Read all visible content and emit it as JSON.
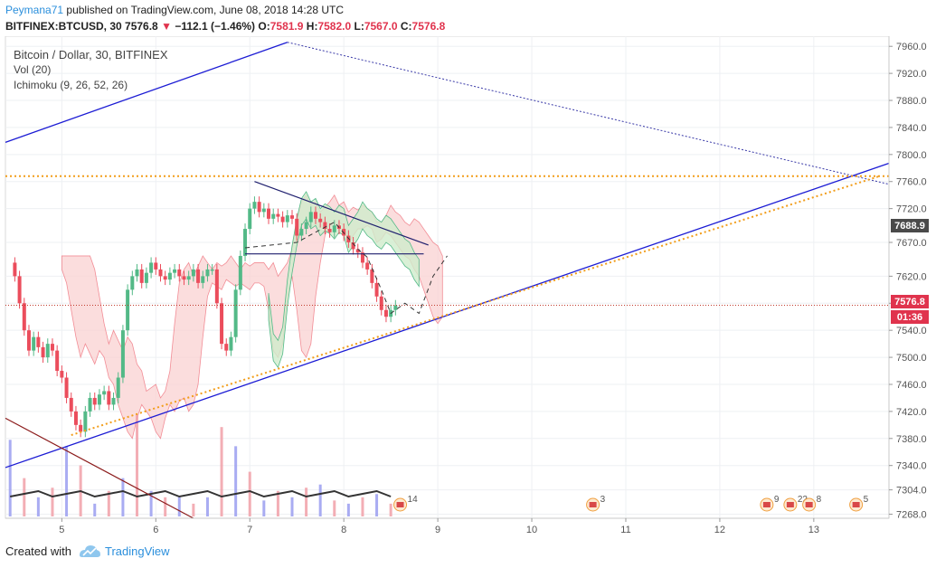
{
  "header": {
    "author": "Peymana71",
    "published_text": "published on TradingView.com, June 08, 2018 14:28 UTC",
    "symbol": "BITFINEX:BTCUSD, 30",
    "last": "7576.8",
    "down_arrow": "▼",
    "change": "−112.1 (−1.46%)",
    "o_label": "O:",
    "o_value": "7581.9",
    "h_label": "H:",
    "h_value": "7582.0",
    "l_label": "L:",
    "l_value": "7567.0",
    "c_label": "C:",
    "c_value": "7576.8"
  },
  "legend": {
    "main": "Bitcoin / Dollar, 30, BITFINEX",
    "vol": "Vol (20)",
    "ichimoku": "Ichimoku (9, 26, 52, 26)"
  },
  "price_tags": {
    "upper": "7688.9",
    "last": "7576.8",
    "countdown": "01:36"
  },
  "footer": {
    "created_with": "Created with",
    "brand": "TradingView"
  },
  "colors": {
    "bull": "#53b987",
    "bear": "#eb4d5c",
    "trend_blue": "#1c1cd4",
    "level_orange": "#f29d1a",
    "cloud_green": "#cfeccc",
    "cloud_red": "#f9d2d2",
    "tag_grey": "#4a4a4a",
    "tag_red": "#e0334d",
    "brown_line": "#8b1a1a"
  },
  "events": [
    "14",
    "3",
    "9",
    "22",
    "8",
    "5"
  ],
  "chart_data": {
    "type": "candlestick",
    "title": "Bitcoin / Dollar, 30, BITFINEX",
    "ylim": [
      7262,
      7975
    ],
    "y_ticks": [
      7960,
      7920,
      7880,
      7840,
      7800,
      7760,
      7720,
      7670,
      7620,
      7580,
      7540,
      7500,
      7460,
      7420,
      7380,
      7340,
      7304,
      7268
    ],
    "x_ticks": [
      "5",
      "6",
      "7",
      "8",
      "9",
      "10",
      "11",
      "12",
      "13"
    ],
    "x_tick_days": [
      5,
      6,
      7,
      8,
      9,
      10,
      11,
      12,
      13
    ],
    "xlim_days": [
      4.4,
      13.8
    ],
    "close_path": [
      [
        4.45,
        7640
      ],
      [
        4.5,
        7620
      ],
      [
        4.55,
        7580
      ],
      [
        4.6,
        7540
      ],
      [
        4.65,
        7510
      ],
      [
        4.7,
        7530
      ],
      [
        4.75,
        7515
      ],
      [
        4.8,
        7500
      ],
      [
        4.85,
        7520
      ],
      [
        4.9,
        7510
      ],
      [
        4.95,
        7480
      ],
      [
        5.0,
        7470
      ],
      [
        5.05,
        7440
      ],
      [
        5.1,
        7420
      ],
      [
        5.15,
        7400
      ],
      [
        5.2,
        7390
      ],
      [
        5.25,
        7420
      ],
      [
        5.3,
        7440
      ],
      [
        5.35,
        7430
      ],
      [
        5.4,
        7445
      ],
      [
        5.45,
        7450
      ],
      [
        5.5,
        7430
      ],
      [
        5.55,
        7440
      ],
      [
        5.6,
        7470
      ],
      [
        5.65,
        7540
      ],
      [
        5.7,
        7600
      ],
      [
        5.75,
        7620
      ],
      [
        5.8,
        7630
      ],
      [
        5.85,
        7610
      ],
      [
        5.9,
        7625
      ],
      [
        5.95,
        7640
      ],
      [
        6.0,
        7630
      ],
      [
        6.05,
        7620
      ],
      [
        6.1,
        7615
      ],
      [
        6.15,
        7625
      ],
      [
        6.2,
        7630
      ],
      [
        6.25,
        7620
      ],
      [
        6.3,
        7615
      ],
      [
        6.35,
        7620
      ],
      [
        6.4,
        7630
      ],
      [
        6.45,
        7610
      ],
      [
        6.5,
        7620
      ],
      [
        6.55,
        7630
      ],
      [
        6.6,
        7630
      ],
      [
        6.65,
        7580
      ],
      [
        6.7,
        7520
      ],
      [
        6.75,
        7510
      ],
      [
        6.8,
        7530
      ],
      [
        6.85,
        7600
      ],
      [
        6.9,
        7650
      ],
      [
        6.95,
        7690
      ],
      [
        7.0,
        7720
      ],
      [
        7.05,
        7730
      ],
      [
        7.1,
        7715
      ],
      [
        7.15,
        7720
      ],
      [
        7.2,
        7705
      ],
      [
        7.25,
        7712
      ],
      [
        7.3,
        7708
      ],
      [
        7.35,
        7700
      ],
      [
        7.4,
        7710
      ],
      [
        7.45,
        7705
      ],
      [
        7.5,
        7680
      ],
      [
        7.55,
        7690
      ],
      [
        7.6,
        7700
      ],
      [
        7.65,
        7715
      ],
      [
        7.7,
        7705
      ],
      [
        7.75,
        7700
      ],
      [
        7.8,
        7690
      ],
      [
        7.85,
        7685
      ],
      [
        7.9,
        7695
      ],
      [
        7.95,
        7690
      ],
      [
        8.0,
        7680
      ],
      [
        8.05,
        7670
      ],
      [
        8.1,
        7660
      ],
      [
        8.15,
        7655
      ],
      [
        8.2,
        7640
      ],
      [
        8.25,
        7630
      ],
      [
        8.3,
        7610
      ],
      [
        8.35,
        7590
      ],
      [
        8.4,
        7570
      ],
      [
        8.45,
        7560
      ],
      [
        8.5,
        7570
      ],
      [
        8.55,
        7576.8
      ]
    ],
    "volume_series": [
      [
        4.45,
        120
      ],
      [
        4.6,
        60
      ],
      [
        4.75,
        30
      ],
      [
        4.9,
        45
      ],
      [
        5.05,
        110
      ],
      [
        5.2,
        80
      ],
      [
        5.35,
        20
      ],
      [
        5.5,
        40
      ],
      [
        5.65,
        60
      ],
      [
        5.8,
        160
      ],
      [
        5.95,
        40
      ],
      [
        6.1,
        30
      ],
      [
        6.25,
        30
      ],
      [
        6.4,
        20
      ],
      [
        6.55,
        30
      ],
      [
        6.7,
        140
      ],
      [
        6.85,
        110
      ],
      [
        7.0,
        70
      ],
      [
        7.15,
        25
      ],
      [
        7.3,
        40
      ],
      [
        7.45,
        30
      ],
      [
        7.6,
        45
      ],
      [
        7.75,
        50
      ],
      [
        7.9,
        25
      ],
      [
        8.05,
        20
      ],
      [
        8.2,
        30
      ],
      [
        8.35,
        35
      ],
      [
        8.5,
        20
      ]
    ],
    "trendlines": [
      {
        "color": "blue",
        "from": [
          4.4,
          7818
        ],
        "to": [
          7.4,
          7966
        ]
      },
      {
        "color": "blue-dotted",
        "from": [
          7.4,
          7966
        ],
        "to": [
          13.8,
          7756
        ]
      },
      {
        "color": "blue",
        "from": [
          4.4,
          7337
        ],
        "to": [
          13.8,
          7787
        ]
      },
      {
        "color": "orange-dotted",
        "from": [
          4.4,
          7768
        ],
        "to": [
          13.8,
          7768
        ]
      },
      {
        "color": "orange-dotted",
        "from": [
          5.1,
          7385
        ],
        "to": [
          13.7,
          7768
        ]
      },
      {
        "color": "navy",
        "from": [
          7.05,
          7760
        ],
        "to": [
          8.9,
          7666
        ]
      },
      {
        "color": "navy",
        "from": [
          6.95,
          7653
        ],
        "to": [
          8.85,
          7653
        ]
      },
      {
        "color": "brown",
        "from": [
          4.4,
          7410
        ],
        "to": [
          6.4,
          7262
        ]
      },
      {
        "color": "red-dotted",
        "from": [
          4.4,
          7577
        ],
        "to": [
          13.8,
          7577
        ]
      }
    ],
    "projection": [
      [
        6.95,
        7662
      ],
      [
        7.5,
        7670
      ],
      [
        7.9,
        7700
      ],
      [
        8.15,
        7660
      ],
      [
        8.25,
        7648
      ],
      [
        8.4,
        7600
      ],
      [
        8.5,
        7565
      ],
      [
        8.65,
        7580
      ],
      [
        8.8,
        7565
      ],
      [
        8.95,
        7620
      ],
      [
        9.1,
        7650
      ]
    ]
  }
}
